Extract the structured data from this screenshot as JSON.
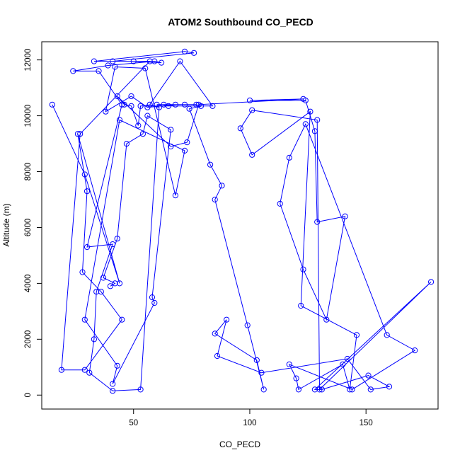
{
  "chart_data": {
    "type": "line",
    "title": "ATOM2 Southbound CO_PECD",
    "xlabel": "CO_PECD",
    "ylabel": "Altitude (m)",
    "xlim": [
      10.5,
      181.0
    ],
    "ylim": [
      -500,
      12650
    ],
    "x_ticks": [
      50,
      100,
      150
    ],
    "x_tick_labels": [
      "50",
      "100",
      "150"
    ],
    "y_ticks": [
      0,
      2000,
      4000,
      6000,
      8000,
      10000,
      12000
    ],
    "y_tick_labels": [
      "0",
      "2000",
      "4000",
      "6000",
      "8000",
      "10000",
      "12000"
    ],
    "grid": false,
    "series_color": "#0000ff",
    "marker": "open-circle",
    "series": [
      {
        "name": "",
        "x": [
          15.0,
          29.0,
          44.0,
          26.0,
          30.0,
          28.0,
          36.0,
          45.0,
          29.0,
          19.0,
          27.0,
          57.0,
          33.0,
          72.0,
          76.0,
          41.0,
          50.0,
          62.0,
          59.0,
          39.0,
          24.0,
          35.0,
          45.0,
          30.0,
          41.0,
          34.0,
          33.0,
          31.0,
          41.0,
          53.0,
          61.0,
          57.0,
          70.0,
          84.0,
          53.0,
          52.0,
          49.0,
          46.0,
          43.0,
          66.0,
          73.0,
          78.0,
          123.0,
          100.0,
          124.0,
          128.0,
          129.0,
          141.0,
          133.0,
          123.0,
          113.0,
          117.0,
          124.0,
          159.0,
          171.0,
          144.0,
          117.0,
          120.0,
          121.0,
          140.0,
          143.0,
          146.0,
          122.0,
          126.0,
          101.0,
          96.0,
          101.0,
          129.0,
          130.0,
          178.0,
          128.0,
          131.0,
          151.0,
          160.0,
          152.0,
          142.0,
          105.0,
          86.0,
          90.0,
          85.0,
          103.0,
          106.0,
          99.0,
          85.0,
          88.0,
          83.0,
          74.0,
          79.0,
          77.0,
          72.0,
          60.0,
          63.0,
          65.0,
          68.0,
          56.0,
          49.0,
          38.0,
          42.0,
          55.0,
          68.0,
          72.0,
          44.0,
          29.0,
          43.0,
          41.0,
          59.0,
          58.0,
          66.0,
          56.0,
          54.0,
          47.0,
          43.0,
          37.0,
          42.0,
          40.0
        ],
        "y": [
          10400,
          7900,
          4000,
          9350,
          7300,
          4400,
          3700,
          2700,
          900,
          900,
          9350,
          11950,
          11950,
          12300,
          12250,
          11950,
          11950,
          11900,
          11950,
          11800,
          11600,
          11600,
          10400,
          5300,
          5400,
          3700,
          2000,
          800,
          150,
          200,
          10300,
          10400,
          11950,
          10350,
          10350,
          9650,
          10350,
          10400,
          10700,
          8900,
          9050,
          10400,
          10600,
          10550,
          10550,
          9450,
          6200,
          6400,
          2700,
          4500,
          6850,
          8500,
          9700,
          2150,
          1600,
          200,
          1100,
          600,
          200,
          1100,
          200,
          2150,
          3200,
          10150,
          8600,
          9550,
          10200,
          9850,
          200,
          4050,
          200,
          200,
          700,
          300,
          200,
          1300,
          800,
          1400,
          2700,
          2200,
          1250,
          200,
          2500,
          7000,
          7500,
          8250,
          10250,
          10350,
          10400,
          10400,
          10400,
          10400,
          10350,
          10400,
          10300,
          10700,
          10150,
          11750,
          11700,
          7150,
          8750,
          9850,
          2700,
          1050,
          400,
          3300,
          3500,
          9500,
          10000,
          9350,
          9000,
          5600,
          4200,
          4000,
          3900
        ]
      }
    ]
  }
}
